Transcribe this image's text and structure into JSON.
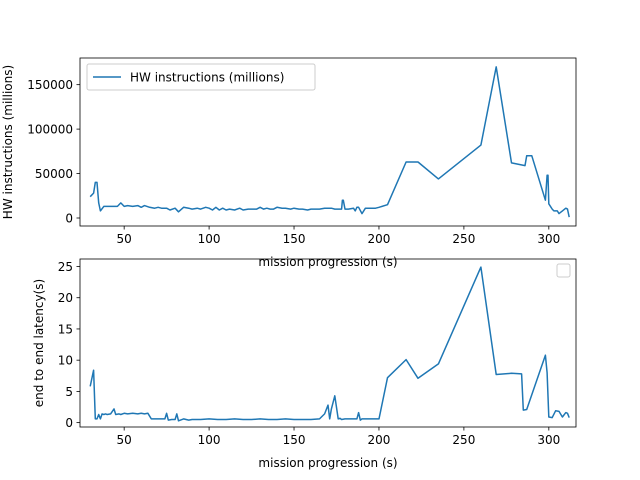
{
  "chart_data": [
    {
      "type": "line",
      "xlabel": "mission  progression (s)",
      "ylabel": "HW instructions (millions)",
      "xlim": [
        24,
        316
      ],
      "ylim": [
        -9000,
        180000
      ],
      "xticks": [
        50,
        100,
        150,
        200,
        250,
        300
      ],
      "yticks": [
        0,
        50000,
        100000,
        150000
      ],
      "grid": false,
      "legend_position": "upper-left",
      "series": [
        {
          "name": "HW instructions (millions)",
          "color": "#1f77b4",
          "x": [
            30,
            32,
            33,
            34,
            35,
            36,
            38,
            40,
            43,
            46,
            48,
            50,
            52,
            55,
            58,
            60,
            62,
            65,
            68,
            70,
            72,
            75,
            77,
            80,
            82,
            85,
            88,
            90,
            93,
            95,
            98,
            100,
            102,
            104,
            106,
            108,
            110,
            112,
            115,
            118,
            120,
            123,
            125,
            128,
            130,
            132,
            134,
            136,
            138,
            140,
            143,
            145,
            148,
            150,
            153,
            155,
            158,
            160,
            163,
            165,
            168,
            170,
            172,
            174,
            176,
            178,
            178.5,
            179,
            180,
            182,
            185,
            186,
            187,
            188,
            190,
            192,
            195,
            198,
            200,
            205,
            216,
            223,
            235,
            260,
            269,
            278,
            286,
            287,
            290,
            298,
            299,
            299.5,
            300,
            302,
            303,
            305,
            306,
            308,
            310,
            311,
            312
          ],
          "y": [
            24000,
            28000,
            40000,
            40000,
            17000,
            8000,
            13000,
            13000,
            13000,
            13000,
            17000,
            13000,
            14000,
            13000,
            14000,
            12000,
            14000,
            12000,
            11000,
            12000,
            11000,
            11000,
            9000,
            11000,
            7000,
            12000,
            11000,
            10000,
            11000,
            10000,
            12000,
            11000,
            9000,
            12000,
            9000,
            11000,
            9000,
            10000,
            9000,
            11000,
            9000,
            10000,
            10000,
            10000,
            12000,
            10000,
            11000,
            10000,
            10000,
            12000,
            11000,
            11000,
            10000,
            11000,
            10000,
            10000,
            9000,
            10000,
            10000,
            10000,
            11000,
            11000,
            11000,
            10000,
            10000,
            10000,
            20000,
            20000,
            10000,
            10000,
            11000,
            8000,
            12000,
            12000,
            5000,
            11000,
            11000,
            11000,
            12000,
            15000,
            63000,
            63000,
            44000,
            82000,
            170000,
            62000,
            59000,
            70000,
            70000,
            20000,
            48000,
            48000,
            16000,
            10000,
            8000,
            8000,
            5000,
            8000,
            11000,
            10000,
            1000
          ]
        }
      ]
    },
    {
      "type": "line",
      "xlabel": "mission  progression (s)",
      "ylabel": "end to end latency(s)",
      "xlim": [
        24,
        316
      ],
      "ylim": [
        -0.7,
        26.2
      ],
      "xticks": [
        50,
        100,
        150,
        200,
        250,
        300
      ],
      "yticks": [
        0,
        5,
        10,
        15,
        20,
        25
      ],
      "grid": false,
      "legend_position": "upper-right",
      "series": [
        {
          "color": "#1f77b4",
          "x": [
            30,
            32,
            33,
            34,
            35,
            36,
            37,
            38,
            39,
            40,
            42,
            44,
            45,
            47,
            48,
            50,
            52,
            55,
            58,
            60,
            62,
            64,
            66,
            68,
            70,
            72,
            74,
            75,
            76,
            78,
            80,
            81,
            82,
            85,
            88,
            90,
            95,
            100,
            105,
            110,
            115,
            120,
            125,
            130,
            135,
            140,
            145,
            150,
            155,
            160,
            165,
            168,
            170,
            171,
            172,
            174,
            176,
            177,
            178,
            180,
            182,
            185,
            187,
            188,
            189,
            190,
            192,
            195,
            198,
            200,
            205,
            216,
            223,
            235,
            260,
            269,
            278,
            284,
            285,
            287,
            298,
            299,
            300,
            302,
            304,
            306,
            308,
            310,
            311,
            312
          ],
          "y": [
            5.8,
            8.4,
            0.6,
            0.6,
            1.3,
            0.6,
            1.4,
            1.3,
            1.4,
            1.3,
            1.4,
            2.2,
            1.3,
            1.4,
            1.3,
            1.5,
            1.4,
            1.5,
            1.4,
            1.5,
            1.4,
            1.5,
            0.6,
            0.6,
            0.6,
            0.6,
            0.6,
            1.5,
            0.4,
            0.5,
            0.5,
            1.4,
            0.3,
            0.6,
            0.4,
            0.5,
            0.5,
            0.6,
            0.5,
            0.5,
            0.6,
            0.5,
            0.5,
            0.6,
            0.5,
            0.5,
            0.6,
            0.5,
            0.5,
            0.5,
            0.6,
            1.4,
            2.8,
            0.6,
            2.2,
            4.3,
            0.6,
            0.7,
            0.5,
            0.6,
            0.6,
            0.6,
            0.6,
            1.6,
            0.4,
            0.6,
            0.6,
            0.6,
            0.6,
            0.6,
            7.2,
            10.1,
            7.1,
            9.4,
            24.9,
            7.7,
            7.9,
            7.8,
            2.0,
            2.1,
            10.8,
            8.0,
            0.9,
            0.8,
            1.9,
            1.8,
            0.9,
            1.6,
            1.5,
            0.8
          ]
        }
      ]
    }
  ]
}
